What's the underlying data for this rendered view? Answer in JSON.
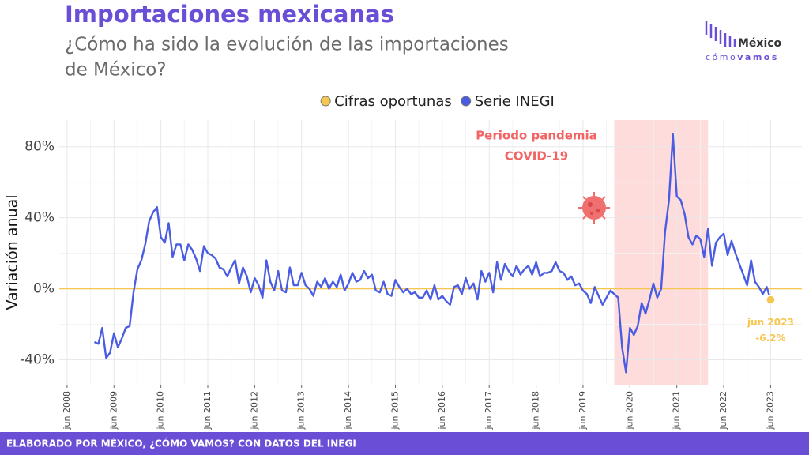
{
  "header": {
    "title": "Importaciones mexicanas",
    "subtitle_lines": [
      "¿Cómo ha sido la evolución de las importaciones",
      "de México?"
    ],
    "logo_top": "México",
    "logo_bottom_a": "cómo",
    "logo_bottom_b": "vamos"
  },
  "chart_data": {
    "type": "line",
    "y_label": "Variación anual",
    "x": [
      "2009-01",
      "2009-02",
      "2009-03",
      "2009-04",
      "2009-05",
      "2009-06",
      "2009-07",
      "2009-08",
      "2009-09",
      "2009-10",
      "2009-11",
      "2009-12",
      "2010-01",
      "2010-02",
      "2010-03",
      "2010-04",
      "2010-05",
      "2010-06",
      "2010-07",
      "2010-08",
      "2010-09",
      "2010-10",
      "2010-11",
      "2010-12",
      "2011-01",
      "2011-02",
      "2011-03",
      "2011-04",
      "2011-05",
      "2011-06",
      "2011-07",
      "2011-08",
      "2011-09",
      "2011-10",
      "2011-11",
      "2011-12",
      "2012-01",
      "2012-02",
      "2012-03",
      "2012-04",
      "2012-05",
      "2012-06",
      "2012-07",
      "2012-08",
      "2012-09",
      "2012-10",
      "2012-11",
      "2012-12",
      "2013-01",
      "2013-02",
      "2013-03",
      "2013-04",
      "2013-05",
      "2013-06",
      "2013-07",
      "2013-08",
      "2013-09",
      "2013-10",
      "2013-11",
      "2013-12",
      "2014-01",
      "2014-02",
      "2014-03",
      "2014-04",
      "2014-05",
      "2014-06",
      "2014-07",
      "2014-08",
      "2014-09",
      "2014-10",
      "2014-11",
      "2014-12",
      "2015-01",
      "2015-02",
      "2015-03",
      "2015-04",
      "2015-05",
      "2015-06",
      "2015-07",
      "2015-08",
      "2015-09",
      "2015-10",
      "2015-11",
      "2015-12",
      "2016-01",
      "2016-02",
      "2016-03",
      "2016-04",
      "2016-05",
      "2016-06",
      "2016-07",
      "2016-08",
      "2016-09",
      "2016-10",
      "2016-11",
      "2016-12",
      "2017-01",
      "2017-02",
      "2017-03",
      "2017-04",
      "2017-05",
      "2017-06",
      "2017-07",
      "2017-08",
      "2017-09",
      "2017-10",
      "2017-11",
      "2017-12",
      "2018-01",
      "2018-02",
      "2018-03",
      "2018-04",
      "2018-05",
      "2018-06",
      "2018-07",
      "2018-08",
      "2018-09",
      "2018-10",
      "2018-11",
      "2018-12",
      "2019-01",
      "2019-02",
      "2019-03",
      "2019-04",
      "2019-05",
      "2019-06",
      "2019-07",
      "2019-08",
      "2019-09",
      "2019-10",
      "2019-11",
      "2019-12",
      "2020-01",
      "2020-02",
      "2020-03",
      "2020-04",
      "2020-05",
      "2020-06",
      "2020-07",
      "2020-08",
      "2020-09",
      "2020-10",
      "2020-11",
      "2020-12",
      "2021-01",
      "2021-02",
      "2021-03",
      "2021-04",
      "2021-05",
      "2021-06",
      "2021-07",
      "2021-08",
      "2021-09",
      "2021-10",
      "2021-11",
      "2021-12",
      "2022-01",
      "2022-02",
      "2022-03",
      "2022-04",
      "2022-05",
      "2022-06",
      "2022-07",
      "2022-08",
      "2022-09",
      "2022-10",
      "2022-11",
      "2022-12",
      "2023-01",
      "2023-02",
      "2023-03",
      "2023-04",
      "2023-05",
      "2023-06"
    ],
    "series": [
      {
        "name": "Cifras oportunas",
        "color": "#f7c64f",
        "marker": "point",
        "values": [
          null,
          null,
          null,
          null,
          null,
          null,
          null,
          null,
          null,
          null,
          null,
          null,
          null,
          null,
          null,
          null,
          null,
          null,
          null,
          null,
          null,
          null,
          null,
          null,
          null,
          null,
          null,
          null,
          null,
          null,
          null,
          null,
          null,
          null,
          null,
          null,
          null,
          null,
          null,
          null,
          null,
          null,
          null,
          null,
          null,
          null,
          null,
          null,
          null,
          null,
          null,
          null,
          null,
          null,
          null,
          null,
          null,
          null,
          null,
          null,
          null,
          null,
          null,
          null,
          null,
          null,
          null,
          null,
          null,
          null,
          null,
          null,
          null,
          null,
          null,
          null,
          null,
          null,
          null,
          null,
          null,
          null,
          null,
          null,
          null,
          null,
          null,
          null,
          null,
          null,
          null,
          null,
          null,
          null,
          null,
          null,
          null,
          null,
          null,
          null,
          null,
          null,
          null,
          null,
          null,
          null,
          null,
          null,
          null,
          null,
          null,
          null,
          null,
          null,
          null,
          null,
          null,
          null,
          null,
          null,
          null,
          null,
          null,
          null,
          null,
          null,
          null,
          null,
          null,
          null,
          null,
          null,
          null,
          null,
          null,
          null,
          null,
          null,
          null,
          null,
          null,
          null,
          null,
          null,
          null,
          null,
          null,
          null,
          null,
          null,
          null,
          null,
          null,
          null,
          null,
          null,
          null,
          null,
          null,
          null,
          null,
          null,
          null,
          null,
          null,
          null,
          null,
          null,
          null,
          null,
          null,
          null,
          null,
          -6.2
        ],
        "value_labels": [
          null,
          null,
          null,
          null,
          null,
          null,
          null,
          null,
          null,
          null,
          null,
          null,
          null,
          null,
          null,
          null,
          null,
          null,
          null,
          null,
          null,
          null,
          null,
          null,
          null,
          null,
          null,
          null,
          null,
          null,
          null,
          null,
          null,
          null,
          null,
          null,
          null,
          null,
          null,
          null,
          null,
          null,
          null,
          null,
          null,
          null,
          null,
          null,
          null,
          null,
          null,
          null,
          null,
          null,
          null,
          null,
          null,
          null,
          null,
          null,
          null,
          null,
          null,
          null,
          null,
          null,
          null,
          null,
          null,
          null,
          null,
          null,
          null,
          null,
          null,
          null,
          null,
          null,
          null,
          null,
          null,
          null,
          null,
          null,
          null,
          null,
          null,
          null,
          null,
          null,
          null,
          null,
          null,
          null,
          null,
          null,
          null,
          null,
          null,
          null,
          null,
          null,
          null,
          null,
          null,
          null,
          null,
          null,
          null,
          null,
          null,
          null,
          null,
          null,
          null,
          null,
          null,
          null,
          null,
          null,
          null,
          null,
          null,
          null,
          null,
          null,
          null,
          null,
          null,
          null,
          null,
          null,
          null,
          null,
          null,
          null,
          null,
          null,
          null,
          null,
          null,
          null,
          null,
          null,
          null,
          null,
          null,
          null,
          null,
          null,
          null,
          null,
          null,
          null,
          null,
          null,
          null,
          null,
          null,
          null,
          null,
          null,
          null,
          null,
          null,
          null,
          null,
          null,
          null,
          null,
          null,
          null,
          null,
          "-6.2%"
        ],
        "point_label": "jun 2023"
      },
      {
        "name": "Serie INEGI",
        "color": "#4a5de2",
        "marker": "line",
        "values": [
          -30,
          -31,
          -22,
          -39,
          -36,
          -25,
          -33,
          -28,
          -22,
          -21,
          -2,
          11,
          16,
          25,
          38,
          43,
          46,
          29,
          26,
          37,
          18,
          25,
          25,
          16,
          25,
          22,
          17,
          10,
          24,
          20,
          19,
          17,
          12,
          11,
          7,
          12,
          16,
          3,
          12,
          7,
          -2,
          6,
          2,
          -5,
          16,
          4,
          -1,
          10,
          -1,
          -2,
          12,
          2,
          2,
          9,
          2,
          0,
          -4,
          4,
          1,
          6,
          0,
          4,
          1,
          8,
          -1,
          3,
          9,
          4,
          5,
          10,
          6,
          8,
          -1,
          -2,
          4,
          -3,
          -4,
          5,
          1,
          -2,
          0,
          -3,
          -2,
          -5,
          -5,
          -1,
          -6,
          2,
          -6,
          -4,
          -7,
          -9,
          1,
          2,
          -3,
          6,
          0,
          3,
          -6,
          10,
          4,
          9,
          -2,
          15,
          5,
          14,
          10,
          7,
          13,
          8,
          11,
          13,
          8,
          15,
          7,
          9,
          9,
          10,
          15,
          10,
          9,
          5,
          7,
          2,
          3,
          -1,
          -3,
          -8,
          1,
          -4,
          -9,
          -5,
          -1,
          -3,
          -5,
          -33,
          -47,
          -22,
          -26,
          -21,
          -8,
          -14,
          -6,
          3,
          -5,
          0,
          32,
          50,
          87,
          52,
          50,
          42,
          29,
          25,
          30,
          28,
          18,
          34,
          13,
          26,
          29,
          31,
          19,
          27,
          20,
          14,
          8,
          2,
          16,
          4,
          1,
          -3,
          1,
          -6.2
        ]
      }
    ],
    "xlim": [
      "2008-04",
      "2024-02"
    ],
    "xticks": [
      {
        "value": "2008-06",
        "label": "jun 2008"
      },
      {
        "value": "2009-06",
        "label": "jun 2009"
      },
      {
        "value": "2010-06",
        "label": "jun 2010"
      },
      {
        "value": "2011-06",
        "label": "jun 2011"
      },
      {
        "value": "2012-06",
        "label": "jun 2012"
      },
      {
        "value": "2013-06",
        "label": "jun 2013"
      },
      {
        "value": "2014-06",
        "label": "jun 2014"
      },
      {
        "value": "2015-06",
        "label": "jun 2015"
      },
      {
        "value": "2016-06",
        "label": "jun 2016"
      },
      {
        "value": "2017-06",
        "label": "jun 2017"
      },
      {
        "value": "2018-06",
        "label": "jun 2018"
      },
      {
        "value": "2019-06",
        "label": "jun 2019"
      },
      {
        "value": "2020-06",
        "label": "jun 2020"
      },
      {
        "value": "2021-06",
        "label": "jun 2021"
      },
      {
        "value": "2022-06",
        "label": "jun 2022"
      },
      {
        "value": "2023-06",
        "label": "jun 2023"
      }
    ],
    "ylim": [
      -54,
      95
    ],
    "yticks": [
      {
        "value": -40,
        "label": "-40%"
      },
      {
        "value": 0,
        "label": "0%"
      },
      {
        "value": 40,
        "label": "40%"
      },
      {
        "value": 80,
        "label": "80%"
      }
    ],
    "grid": true,
    "zero_line_color": "#f7c64f",
    "highlight": {
      "start": "2020-02",
      "end": "2022-02",
      "color": "#ffdcdc",
      "label_lines": [
        "Periodo pandemia",
        "COVID-19"
      ],
      "label_color": "#f26464"
    },
    "legend": "top"
  },
  "footer": {
    "text": "ELABORADO POR MÉXICO, ¿CÓMO VAMOS? CON DATOS DEL INEGI"
  }
}
